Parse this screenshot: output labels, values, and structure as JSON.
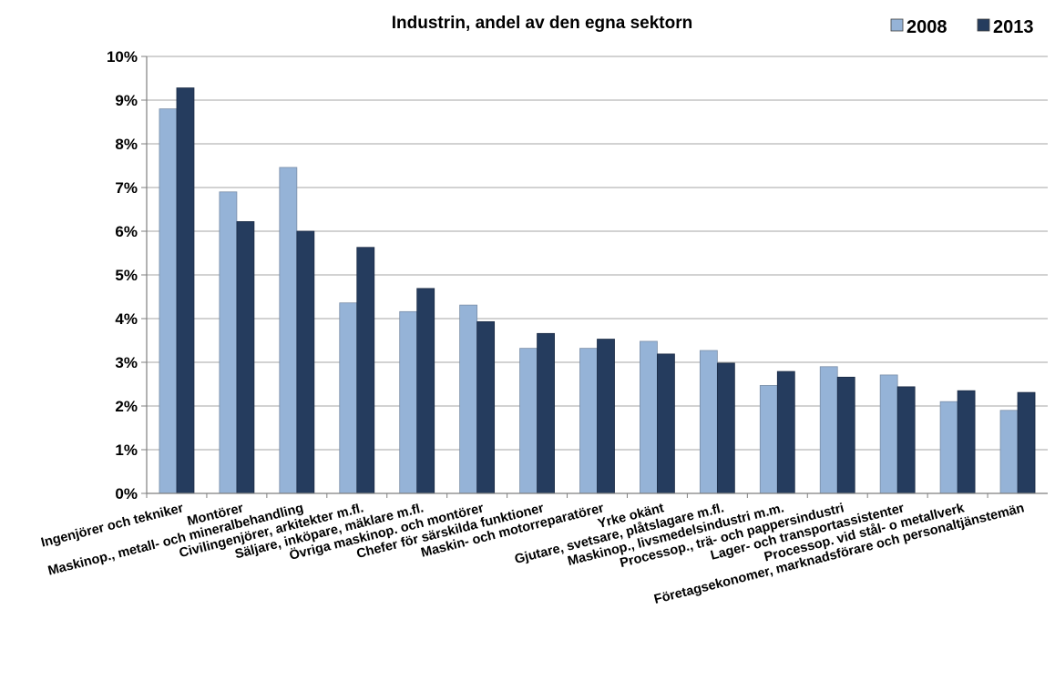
{
  "chart_data": {
    "type": "bar",
    "title": "Industrin, andel av den egna sektorn",
    "xlabel": "",
    "ylabel": "",
    "ylim": [
      0,
      0.1
    ],
    "yticks": [
      0,
      0.01,
      0.02,
      0.03,
      0.04,
      0.05,
      0.06,
      0.07,
      0.08,
      0.09,
      0.1
    ],
    "ytick_labels": [
      "0%",
      "1%",
      "2%",
      "3%",
      "4%",
      "5%",
      "6%",
      "7%",
      "8%",
      "9%",
      "10%"
    ],
    "grid": true,
    "legend_position": "top-right",
    "categories": [
      "Ingenjörer och tekniker",
      "Montörer",
      "Maskinop., metall- och mineralbehandling",
      "Civilingenjörer, arkitekter m.fl.",
      "Säljare, inköpare, mäklare m.fl.",
      "Övriga maskinop. och montörer",
      "Chefer för särskilda funktioner",
      "Maskin- och motorreparatörer",
      "Yrke okänt",
      "Gjutare, svetsare, plåtslagare m.fl.",
      "Maskinop., livsmedelsindustri m.m.",
      "Processop., trä- och pappersindustri",
      "Lager- och transportassistenter",
      "Processop. vid stål- o metallverk",
      "Företagsekonomer, marknadsförare och personaltjänstemän"
    ],
    "series": [
      {
        "name": "2008",
        "color": "#95b3d7",
        "values": [
          0.088,
          0.069,
          0.0746,
          0.0436,
          0.0416,
          0.0431,
          0.0332,
          0.0332,
          0.0348,
          0.0327,
          0.0247,
          0.029,
          0.0271,
          0.021,
          0.019
        ]
      },
      {
        "name": "2013",
        "color": "#253c5e",
        "values": [
          0.0928,
          0.0622,
          0.06,
          0.0563,
          0.0469,
          0.0393,
          0.0366,
          0.0353,
          0.0319,
          0.0298,
          0.0279,
          0.0266,
          0.0244,
          0.0235,
          0.0231
        ]
      }
    ]
  }
}
